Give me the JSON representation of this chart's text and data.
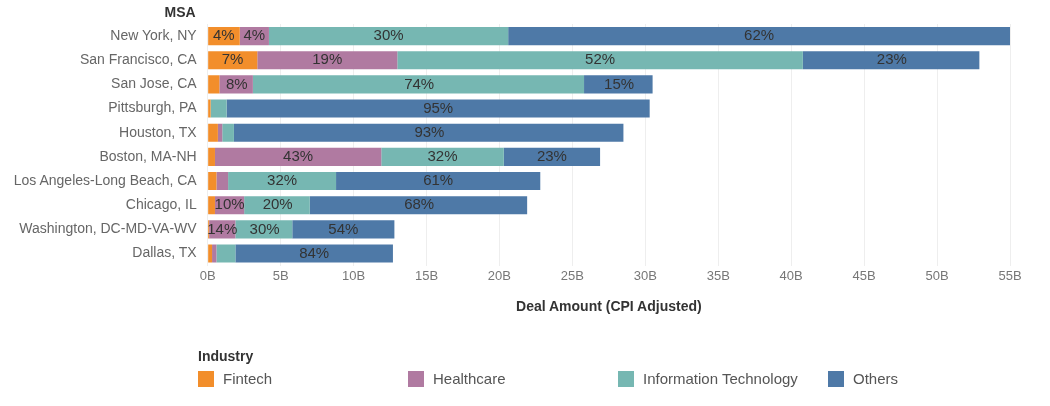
{
  "chart_data": {
    "type": "bar",
    "orientation": "horizontal",
    "stacked": true,
    "ylabel": "MSA",
    "xlabel": "Deal Amount (CPI Adjusted)",
    "legend_title": "Industry",
    "legend": "bottom",
    "grid": "x",
    "categories": [
      "New York, NY",
      "San Francisco, CA",
      "San Jose, CA",
      "Pittsburgh, PA",
      "Houston, TX",
      "Boston, MA-NH",
      "Los Angeles-Long Beach, CA",
      "Chicago, IL",
      "Washington, DC-MD-VA-WV",
      "Dallas, TX"
    ],
    "xlim": [
      0,
      55
    ],
    "annotations": [
      {
        "text": "4%",
        "x": 1.1,
        "y": "New York, NY"
      },
      {
        "text": "4%",
        "x": 3.2,
        "y": "New York, NY"
      },
      {
        "text": "30%",
        "x": 12.4,
        "y": "New York, NY"
      },
      {
        "text": "62%",
        "x": 37.8,
        "y": "New York, NY"
      },
      {
        "text": "7%",
        "x": 1.7,
        "y": "San Francisco, CA"
      },
      {
        "text": "19%",
        "x": 8.2,
        "y": "San Francisco, CA"
      },
      {
        "text": "52%",
        "x": 26.9,
        "y": "San Francisco, CA"
      },
      {
        "text": "23%",
        "x": 46.9,
        "y": "San Francisco, CA"
      },
      {
        "text": "8%",
        "x": 2.0,
        "y": "San Jose, CA"
      },
      {
        "text": "74%",
        "x": 14.5,
        "y": "San Jose, CA"
      },
      {
        "text": "15%",
        "x": 28.2,
        "y": "San Jose, CA"
      },
      {
        "text": "95%",
        "x": 15.8,
        "y": "Pittsburgh, PA"
      },
      {
        "text": "93%",
        "x": 15.2,
        "y": "Houston, TX"
      },
      {
        "text": "43%",
        "x": 6.2,
        "y": "Boston, MA-NH"
      },
      {
        "text": "32%",
        "x": 16.1,
        "y": "Boston, MA-NH"
      },
      {
        "text": "23%",
        "x": 23.6,
        "y": "Boston, MA-NH"
      },
      {
        "text": "32%",
        "x": 5.1,
        "y": "Los Angeles-Long Beach, CA"
      },
      {
        "text": "61%",
        "x": 15.8,
        "y": "Los Angeles-Long Beach, CA"
      },
      {
        "text": "10%",
        "x": 1.5,
        "y": "Chicago, IL"
      },
      {
        "text": "20%",
        "x": 4.8,
        "y": "Chicago, IL"
      },
      {
        "text": "68%",
        "x": 14.5,
        "y": "Chicago, IL"
      },
      {
        "text": "14%",
        "x": 1.0,
        "y": "Washington, DC-MD-VA-WV"
      },
      {
        "text": "30%",
        "x": 3.9,
        "y": "Washington, DC-MD-VA-WV"
      },
      {
        "text": "54%",
        "x": 9.3,
        "y": "Washington, DC-MD-VA-WV"
      },
      {
        "text": "84%",
        "x": 7.3,
        "y": "Dallas, TX"
      }
    ],
    "xticks": [
      {
        "value": 0,
        "label": "0B"
      },
      {
        "value": 5,
        "label": "5B"
      },
      {
        "value": 10,
        "label": "10B"
      },
      {
        "value": 15,
        "label": "15B"
      },
      {
        "value": 20,
        "label": "20B"
      },
      {
        "value": 25,
        "label": "25B"
      },
      {
        "value": 30,
        "label": "30B"
      },
      {
        "value": 35,
        "label": "35B"
      },
      {
        "value": 40,
        "label": "40B"
      },
      {
        "value": 45,
        "label": "45B"
      },
      {
        "value": 50,
        "label": "50B"
      },
      {
        "value": 55,
        "label": "55B"
      }
    ],
    "series": [
      {
        "name": "Fintech",
        "color": "#f28e2b",
        "values": [
          2.2,
          3.4,
          0.8,
          0.2,
          0.7,
          0.5,
          0.6,
          0.5,
          0.1,
          0.3
        ]
      },
      {
        "name": "Healthcare",
        "color": "#b07aa1",
        "values": [
          2.0,
          9.6,
          2.3,
          0,
          0.3,
          11.4,
          0.8,
          2.0,
          1.8,
          0.3
        ]
      },
      {
        "name": "Information Technology",
        "color": "#76b7b2",
        "values": [
          16.4,
          27.8,
          22.7,
          1.1,
          0.8,
          8.4,
          7.4,
          4.5,
          3.9,
          1.3
        ]
      },
      {
        "name": "Others",
        "color": "#4e79a7",
        "values": [
          34.4,
          12.1,
          4.7,
          29.0,
          26.7,
          6.6,
          14.0,
          14.9,
          7.0,
          10.8
        ]
      }
    ]
  }
}
